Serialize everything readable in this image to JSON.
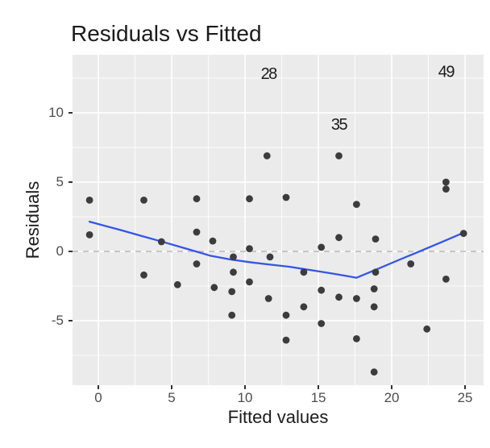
{
  "chart_data": {
    "type": "scatter",
    "title": "Residuals vs Fitted",
    "xlabel": "Fitted values",
    "ylabel": "Residuals",
    "legend": "none",
    "grid": "white major and minor gridlines on gray panel",
    "x_ticks": [
      0,
      5,
      10,
      15,
      20,
      25
    ],
    "y_ticks": [
      -5,
      0,
      5,
      10
    ],
    "x_minor": [
      2.5,
      7.5,
      12.5,
      17.5,
      22.5
    ],
    "y_minor": [
      -7.5,
      -2.5,
      2.5,
      7.5,
      12.5
    ],
    "xlim": [
      -1.76,
      26.26
    ],
    "ylim": [
      -9.65,
      14.19
    ],
    "zero_line_y": 0,
    "points": [
      [
        -0.6,
        3.7
      ],
      [
        -0.6,
        1.2
      ],
      [
        3.1,
        3.7
      ],
      [
        3.1,
        -1.7
      ],
      [
        4.3,
        0.7
      ],
      [
        5.4,
        -2.4
      ],
      [
        6.7,
        3.8
      ],
      [
        6.7,
        1.4
      ],
      [
        6.7,
        -0.9
      ],
      [
        7.8,
        0.75
      ],
      [
        7.9,
        -2.6
      ],
      [
        9.1,
        -2.9
      ],
      [
        9.2,
        -1.5
      ],
      [
        9.1,
        -4.6
      ],
      [
        9.2,
        -0.4
      ],
      [
        10.3,
        3.8
      ],
      [
        10.3,
        0.2
      ],
      [
        10.3,
        -2.2
      ],
      [
        11.5,
        6.9
      ],
      [
        11.6,
        -3.4
      ],
      [
        11.7,
        -0.4
      ],
      [
        12.8,
        3.9
      ],
      [
        12.8,
        -4.6
      ],
      [
        12.8,
        -6.4
      ],
      [
        14.0,
        -1.5
      ],
      [
        14.0,
        -4.0
      ],
      [
        15.2,
        0.3
      ],
      [
        15.2,
        -2.8
      ],
      [
        15.2,
        -5.2
      ],
      [
        16.4,
        6.9
      ],
      [
        16.4,
        1.0
      ],
      [
        16.4,
        -3.3
      ],
      [
        17.6,
        3.4
      ],
      [
        17.6,
        -3.4
      ],
      [
        17.6,
        -6.3
      ],
      [
        18.8,
        -2.7
      ],
      [
        18.8,
        -4.0
      ],
      [
        18.8,
        -8.7
      ],
      [
        18.9,
        0.9
      ],
      [
        18.9,
        -1.5
      ],
      [
        21.3,
        -0.9
      ],
      [
        22.4,
        -5.6
      ],
      [
        23.7,
        5.0
      ],
      [
        23.7,
        4.5
      ],
      [
        23.7,
        -2.0
      ],
      [
        24.9,
        1.3
      ]
    ],
    "point_labels": [
      {
        "label": "28",
        "x": 11.6,
        "y": 12.85
      },
      {
        "label": "35",
        "x": 16.4,
        "y": 9.2
      },
      {
        "label": "49",
        "x": 23.7,
        "y": 13.0
      }
    ],
    "smoother": [
      [
        -0.6,
        2.15
      ],
      [
        1.5,
        1.55
      ],
      [
        3.0,
        1.1
      ],
      [
        4.3,
        0.72
      ],
      [
        6.0,
        0.2
      ],
      [
        7.6,
        -0.3
      ],
      [
        9.0,
        -0.58
      ],
      [
        10.5,
        -0.8
      ],
      [
        11.7,
        -0.95
      ],
      [
        13.0,
        -1.1
      ],
      [
        14.5,
        -1.35
      ],
      [
        16.0,
        -1.6
      ],
      [
        17.0,
        -1.78
      ],
      [
        17.6,
        -1.9
      ],
      [
        19.0,
        -1.28
      ],
      [
        20.5,
        -0.61
      ],
      [
        22.0,
        0.05
      ],
      [
        23.5,
        0.72
      ],
      [
        24.9,
        1.35
      ]
    ],
    "colors": {
      "panel_bg": "#EBEBEB",
      "grid": "#FFFFFF",
      "point": "#3C3C3C",
      "smooth_line": "#3355E8",
      "zero_line": "#BBBBBB",
      "tick_label": "#4D4D4D",
      "text": "#1B1B1B",
      "tick_mark": "#333333"
    }
  }
}
